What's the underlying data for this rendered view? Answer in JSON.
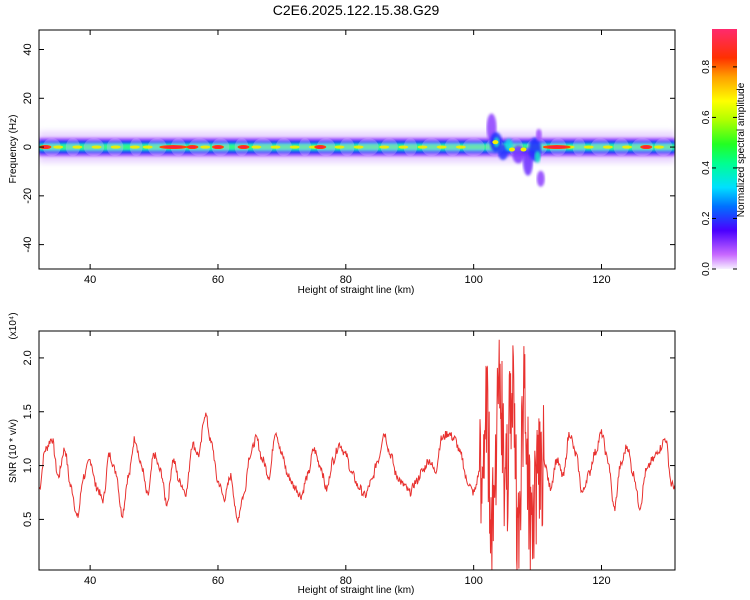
{
  "title": "C2E6.2025.122.15.38.G29",
  "colors": {
    "snr_line": "#e8312f",
    "axis": "#000000",
    "background": "#ffffff"
  },
  "chart_data": [
    {
      "type": "heatmap",
      "xlabel": "Height of straight line (km)",
      "ylabel": "Frequency (Hz)",
      "xlim": [
        32,
        131.5
      ],
      "ylim": [
        -50,
        48
      ],
      "xticks": [
        40,
        60,
        80,
        100,
        120
      ],
      "yticks": [
        -40,
        -20,
        0,
        20,
        40
      ],
      "colorbar": {
        "label": "Normalized spectral amplitude",
        "range": [
          0.0,
          0.95
        ],
        "ticks": [
          0.0,
          0.2,
          0.4,
          0.6,
          0.8
        ],
        "colormap": "rainbow (magenta-blue-cyan-green-yellow-red)"
      },
      "band": {
        "center_hz": 0,
        "half_width_hz": 3,
        "spread_halfwidth_hz": 5,
        "peak_amplitude_near": [
          33,
          53,
          56,
          60,
          64,
          76,
          113,
          127
        ],
        "disturbance_km": [
          102,
          111
        ],
        "disturbance_freq_range_hz": [
          -16,
          11
        ]
      }
    },
    {
      "type": "line",
      "xlabel": "Height of straight line (km)",
      "ylabel": "SNR (10 * v/v)",
      "y_multiplier": "(x10⁴)",
      "xlim": [
        32,
        131.5
      ],
      "ylim": [
        0.03,
        2.25
      ],
      "xticks": [
        40,
        60,
        80,
        100,
        120
      ],
      "yticks": [
        0.5,
        1.0,
        1.5,
        2.0
      ],
      "series": [
        {
          "x": [
            32,
            33,
            34,
            35,
            36,
            37,
            38,
            39,
            40,
            41,
            42,
            43,
            44,
            45,
            46,
            47,
            48,
            49,
            50,
            51,
            52,
            53,
            54,
            55,
            56,
            57,
            58,
            59,
            60,
            61,
            62,
            63,
            64,
            65,
            66,
            67,
            68,
            69,
            70,
            71,
            72,
            73,
            74,
            75,
            76,
            77,
            78,
            79,
            80,
            81,
            82,
            83,
            84,
            85,
            86,
            87,
            88,
            89,
            90,
            91,
            92,
            93,
            94,
            95,
            96,
            97,
            98,
            99,
            100,
            101,
            102,
            103,
            104,
            105,
            106,
            107,
            108,
            109,
            110,
            111,
            112,
            113,
            114,
            115,
            116,
            117,
            118,
            119,
            120,
            121,
            122,
            123,
            124,
            125,
            126,
            127,
            128,
            129,
            130,
            131,
            132
          ],
          "values": [
            0.78,
            1.15,
            1.25,
            0.9,
            1.15,
            0.8,
            0.52,
            0.9,
            1.05,
            0.8,
            0.68,
            1.1,
            0.95,
            0.55,
            0.9,
            1.25,
            1.0,
            0.72,
            1.1,
            0.95,
            0.65,
            1.05,
            0.85,
            0.75,
            1.2,
            1.1,
            1.48,
            1.2,
            0.85,
            0.7,
            0.9,
            0.5,
            0.72,
            1.1,
            1.25,
            1.05,
            0.9,
            1.32,
            1.1,
            0.9,
            0.8,
            0.72,
            0.9,
            1.15,
            1.0,
            0.78,
            1.05,
            1.2,
            1.1,
            0.92,
            0.8,
            0.72,
            0.85,
            1.05,
            1.3,
            1.1,
            0.9,
            0.82,
            0.75,
            0.85,
            0.95,
            1.05,
            0.95,
            1.25,
            1.3,
            1.25,
            1.1,
            0.85,
            0.75,
            0.95,
            1.4,
            0.5,
            1.85,
            0.7,
            1.7,
            0.45,
            1.6,
            0.4,
            0.9,
            1.05,
            0.8,
            1.05,
            0.9,
            1.3,
            1.1,
            0.75,
            0.92,
            1.12,
            1.3,
            1.05,
            0.6,
            1.0,
            1.18,
            0.92,
            0.62,
            0.95,
            1.05,
            1.15,
            1.25,
            0.82,
            0.78
          ]
        }
      ]
    }
  ]
}
